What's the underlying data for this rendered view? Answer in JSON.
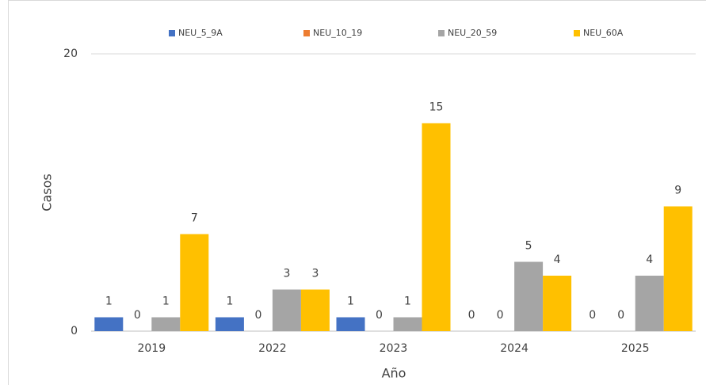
{
  "chart_data": {
    "type": "bar",
    "categories": [
      "2019",
      "2022",
      "2023",
      "2024",
      "2025"
    ],
    "series": [
      {
        "name": "NEU_5_9A",
        "color": "#4472c4",
        "values": [
          1,
          1,
          1,
          0,
          0
        ]
      },
      {
        "name": "NEU_10_19",
        "color": "#ed7d31",
        "values": [
          0,
          0,
          0,
          0,
          0
        ]
      },
      {
        "name": "NEU_20_59",
        "color": "#a5a5a5",
        "values": [
          1,
          3,
          1,
          5,
          4
        ]
      },
      {
        "name": "NEU_60A",
        "color": "#ffc000",
        "values": [
          7,
          3,
          15,
          4,
          9
        ]
      }
    ],
    "x_label": "Año",
    "y_label": "Casos",
    "ylim": [
      0,
      20
    ],
    "yticks": [
      0,
      20
    ],
    "grid": true,
    "legend": "top"
  }
}
